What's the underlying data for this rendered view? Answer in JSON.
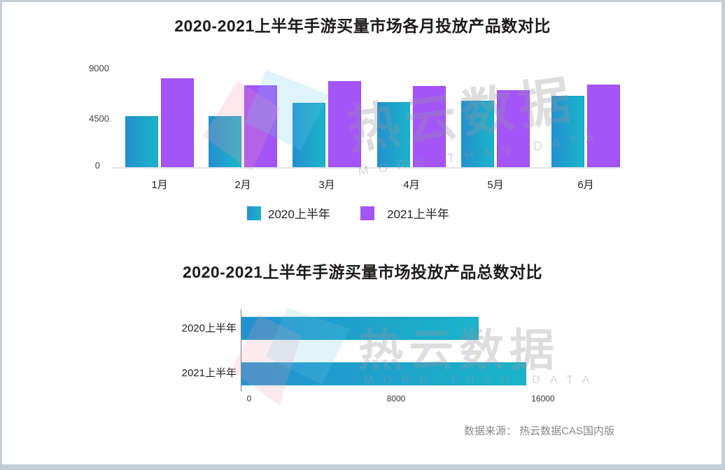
{
  "chart_data": [
    {
      "type": "bar",
      "title": "2020-2021上半年手游买量市场各月投放产品数对比",
      "categories": [
        "1月",
        "2月",
        "3月",
        "4月",
        "5月",
        "6月"
      ],
      "series": [
        {
          "name": "2020上半年",
          "values": [
            4800,
            4800,
            6000,
            6100,
            6200,
            6700
          ],
          "color": "#1ea3cc"
        },
        {
          "name": "2021上半年",
          "values": [
            8300,
            7650,
            8050,
            7600,
            7200,
            7700
          ],
          "color": "#a455f8"
        }
      ],
      "yticks": [
        "0",
        "4500",
        "9000"
      ],
      "ylim": [
        0,
        9000
      ],
      "xlabel": "",
      "ylabel": "",
      "legend_position": "bottom",
      "grid": false
    },
    {
      "type": "bar",
      "orientation": "horizontal",
      "title": "2020-2021上半年手游买量市场投放产品总数对比",
      "categories": [
        "2020上半年",
        "2021上半年"
      ],
      "values": [
        12600,
        15100
      ],
      "xticks": [
        "0",
        "8000",
        "16000"
      ],
      "xlim": [
        0,
        16000
      ],
      "color": "#1ea3cc"
    }
  ],
  "chart1": {
    "title": "2020-2021上半年手游买量市场各月投放产品数对比",
    "yticks": [
      "9000",
      "4500",
      "0"
    ],
    "months": [
      "1月",
      "2月",
      "3月",
      "4月",
      "5月",
      "6月"
    ],
    "legend": [
      "2020上半年",
      "2021上半年"
    ]
  },
  "chart2": {
    "title": "2020-2021上半年手游买量市场投放产品总数对比",
    "labels": [
      "2020上半年",
      "2021上半年"
    ],
    "xticks": [
      "0",
      "8000",
      "16000"
    ]
  },
  "watermark": {
    "main": "热云数据",
    "sub": "MORE THAN DATA"
  },
  "source": "数据来源：  热云数据CAS国内版"
}
